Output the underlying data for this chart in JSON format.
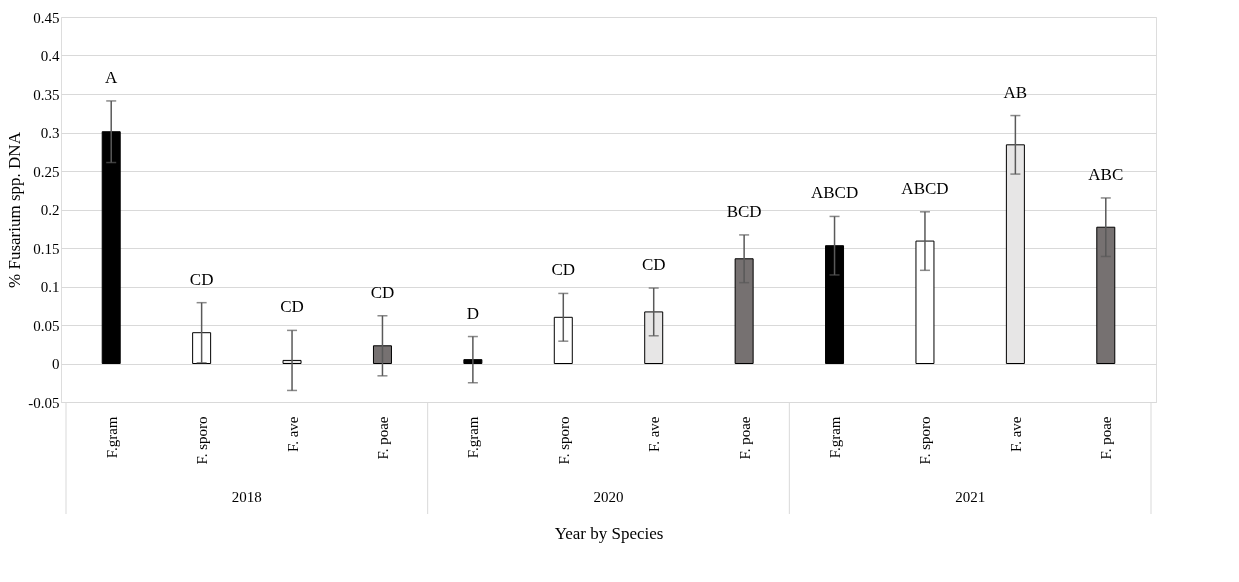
{
  "chart_data": {
    "type": "bar",
    "categories": [
      "F.gram",
      "F. sporo",
      "F. ave",
      "F. poae",
      "F.gram",
      "F. sporo",
      "F. ave",
      "F. poae",
      "F.gram",
      "F. sporo",
      "F. ave",
      "F. poae"
    ],
    "values": [
      0.301,
      0.04,
      0.004,
      0.023,
      0.005,
      0.06,
      0.067,
      0.136,
      0.153,
      0.159,
      0.284,
      0.177
    ],
    "errors": [
      0.04,
      0.039,
      0.039,
      0.039,
      0.03,
      0.031,
      0.031,
      0.031,
      0.038,
      0.038,
      0.038,
      0.038
    ],
    "colors": [
      "#000000",
      "#ffffff",
      "#e7e6e6",
      "#767171",
      "#000000",
      "#ffffff",
      "#e7e6e6",
      "#767171",
      "#000000",
      "#ffffff",
      "#e7e6e6",
      "#767171"
    ],
    "value_labels": [
      "A",
      "CD",
      "CD",
      "CD",
      "D",
      "CD",
      "CD",
      "BCD",
      "ABCD",
      "ABCD",
      "AB",
      "ABC"
    ],
    "annotations": [
      "2018",
      "2020",
      "2021"
    ],
    "xlabel": "Year by Species",
    "ylabel": "% Fusarium spp. DNA",
    "ylim": [
      -0.05,
      0.45
    ],
    "yticks": [
      -0.05,
      0,
      0.05,
      0.1,
      0.15,
      0.2,
      0.25,
      0.3,
      0.35,
      0.4,
      0.45
    ],
    "grid": "y"
  }
}
